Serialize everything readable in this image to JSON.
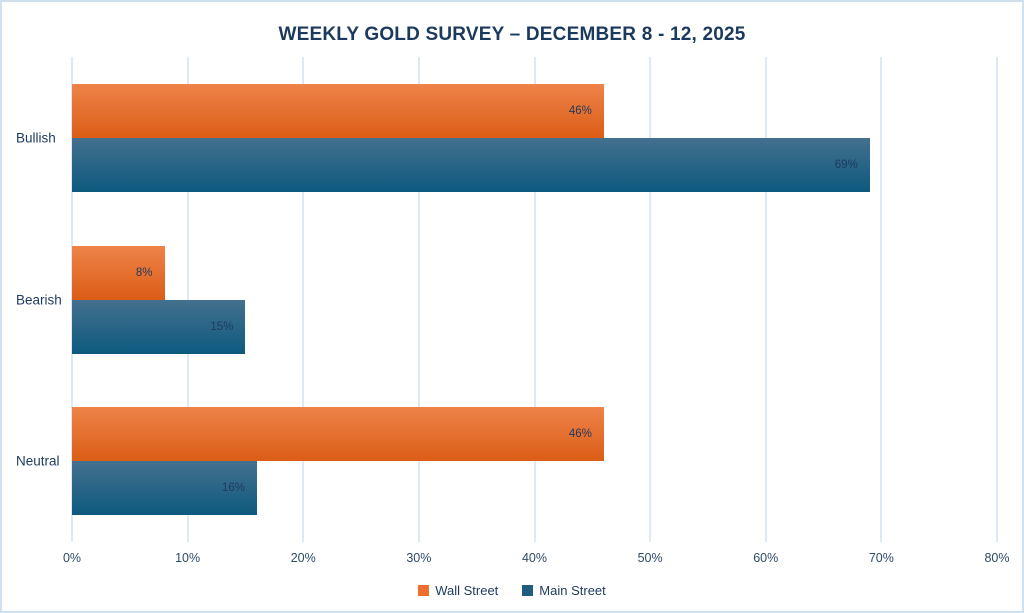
{
  "chart_data": {
    "type": "bar",
    "orientation": "horizontal",
    "title": "WEEKLY GOLD SURVEY – DECEMBER 8 - 12, 2025",
    "categories": [
      "Bullish",
      "Bearish",
      "Neutral"
    ],
    "series": [
      {
        "name": "Wall Street",
        "values": [
          46,
          8,
          46
        ],
        "data_labels": [
          "46%",
          "8%",
          "46%"
        ],
        "color_top": "#EE8349",
        "color_bottom": "#DB5D16",
        "legend_color": "#ED6E2D"
      },
      {
        "name": "Main Street",
        "values": [
          69,
          15,
          16
        ],
        "data_labels": [
          "69%",
          "15%",
          "16%"
        ],
        "color_top": "#44708E",
        "color_bottom": "#0D5A7F",
        "legend_color": "#1F5C7D"
      }
    ],
    "value_suffix": "%",
    "xlabel": "",
    "ylabel": "",
    "xlim": [
      0,
      80
    ],
    "x_ticks": [
      "0%",
      "10%",
      "20%",
      "30%",
      "40%",
      "50%",
      "60%",
      "70%",
      "80%"
    ],
    "x_tick_values": [
      0,
      10,
      20,
      30,
      40,
      50,
      60,
      70,
      80
    ],
    "grid": true,
    "legend_position": "bottom",
    "colors": {
      "title_text": "#1B3A5E",
      "axis_text": "#2D4A68",
      "bar_label_text": "#1E3A5F",
      "gridline": "#DDE9F6",
      "frame_border": "#CFE0EF",
      "background": "#FFFFFF"
    }
  }
}
